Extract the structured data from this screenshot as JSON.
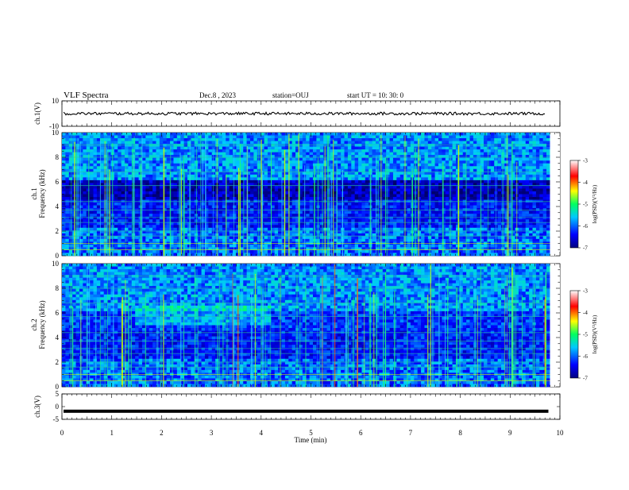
{
  "header": {
    "title": "VLF Spectra",
    "date": "Dec.8  , 2023",
    "station": "station=OUJ",
    "start": "start  UT  =   10: 30: 0"
  },
  "chart_data": [
    {
      "type": "line",
      "panel": "ch1_waveform",
      "ylabel": "ch.1(V)",
      "ylim": [
        -10,
        10
      ],
      "yticks": [
        "10",
        "-10"
      ],
      "xlim": [
        0,
        10
      ],
      "trace_level_V": 0,
      "trace_color": "#000000"
    },
    {
      "type": "heatmap",
      "panel": "ch1_spectrogram",
      "ylabel": "ch.1\nFrequency  (kHz)",
      "ylim": [
        0,
        10
      ],
      "yticks": [
        "0",
        "2",
        "4",
        "6",
        "8",
        "10"
      ],
      "xlim": [
        0,
        10
      ],
      "data_end_min": 9.8,
      "colorbar": {
        "label": "log(PSD)(V²/Hz)",
        "range": [
          -7,
          -3
        ],
        "ticks": [
          "-3",
          "-4",
          "-5",
          "-6",
          "-7"
        ]
      }
    },
    {
      "type": "heatmap",
      "panel": "ch2_spectrogram",
      "ylabel": "ch.2\nFrequency  (kHz)",
      "ylim": [
        0,
        10
      ],
      "yticks": [
        "0",
        "2",
        "4",
        "6",
        "8",
        "10"
      ],
      "xlim": [
        0,
        10
      ],
      "data_end_min": 9.8,
      "colorbar": {
        "label": "log(PSD)(V²/Hz)",
        "range": [
          -7,
          -3
        ],
        "ticks": [
          "-3",
          "-4",
          "-5",
          "-6",
          "-7"
        ]
      }
    },
    {
      "type": "line",
      "panel": "ch3_waveform",
      "ylabel": "ch.3(V)",
      "ylim": [
        -5,
        5
      ],
      "yticks": [
        "5",
        "0",
        "-5"
      ],
      "xlim": [
        0,
        10
      ],
      "trace_level_V": -1.8,
      "trace_color": "#000000"
    }
  ],
  "xaxis": {
    "label": "Time  (min)",
    "ticks": [
      "0",
      "1",
      "2",
      "3",
      "4",
      "5",
      "6",
      "7",
      "8",
      "9",
      "10"
    ]
  },
  "colors": {
    "cmap": [
      "#000000",
      "#000066",
      "#0000ff",
      "#00c8ff",
      "#00ff80",
      "#ffff00",
      "#ff0000",
      "#ffffff"
    ]
  }
}
